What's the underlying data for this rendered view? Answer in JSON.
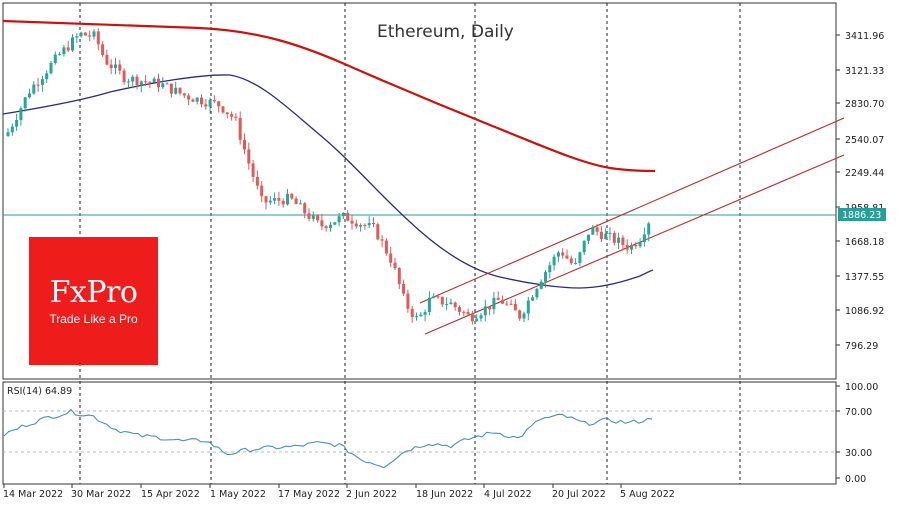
{
  "chart_data": {
    "type": "candlestick",
    "title": "Ethereum, Daily",
    "instrument": "Ethereum",
    "timeframe": "Daily",
    "price_axis": {
      "ticks": [
        3411.96,
        3121.33,
        2830.7,
        2540.07,
        2249.44,
        1958.81,
        1668.18,
        1377.55,
        1086.92,
        796.29
      ],
      "current_price": 1886.23,
      "current_price_color": "#2a9d9a"
    },
    "x_axis": {
      "ticks": [
        "14 Mar 2022",
        "30 Mar 2022",
        "15 Apr 2022",
        "1 May 2022",
        "17 May 2022",
        "2 Jun 2022",
        "18 Jun 2022",
        "4 Jul 2022",
        "20 Jul 2022",
        "5 Aug 2022"
      ]
    },
    "grid": {
      "vertical_dashed": true,
      "horizontal": false
    },
    "colors": {
      "bull": "#26a69a",
      "bear": "#e05a57",
      "ma200": "#cc1111",
      "ma50": "#2a2a80",
      "channel": "#b03030",
      "rsi": "#4a8fc0"
    },
    "overlays": [
      {
        "name": "Moving average (long, red)",
        "approx_values": [
          3480,
          3470,
          3450,
          3400,
          3300,
          3150,
          2980,
          2800,
          2600,
          2400,
          2270,
          2260
        ]
      },
      {
        "name": "Moving average (short, navy)",
        "approx_values": [
          2880,
          2950,
          3000,
          3080,
          3100,
          2820,
          2350,
          1950,
          1600,
          1380,
          1300,
          1420
        ]
      },
      {
        "name": "Ascending channel upper",
        "from": [
          1122,
          "19 Jun 2022"
        ],
        "to": [
          2680,
          "right edge"
        ]
      },
      {
        "name": "Ascending channel lower",
        "from": [
          880,
          "19 Jun 2022"
        ],
        "to": [
          2380,
          "right edge"
        ]
      }
    ],
    "series": [
      {
        "name": "ETH close (approx)",
        "x": [
          "14 Mar 2022",
          "30 Mar 2022",
          "15 Apr 2022",
          "1 May 2022",
          "17 May 2022",
          "2 Jun 2022",
          "18 Jun 2022",
          "4 Jul 2022",
          "20 Jul 2022",
          "5 Aug 2022",
          "12 Aug 2022"
        ],
        "values": [
          2580,
          3380,
          3040,
          2800,
          2030,
          1840,
          1000,
          1150,
          1540,
          1700,
          1886.23
        ]
      }
    ],
    "indicator": {
      "name": "RSI(14)",
      "label": "RSI(14) 64.89",
      "value": 64.89,
      "ticks": [
        "100.00",
        "70.00",
        "30.00",
        "0.00"
      ],
      "levels": [
        70,
        30
      ],
      "approx_values": [
        47,
        58,
        66,
        72,
        67,
        53,
        46,
        44,
        40,
        41,
        26,
        31,
        33,
        34,
        38,
        36,
        20,
        13,
        30,
        38,
        35,
        44,
        50,
        43,
        64,
        68,
        59,
        63,
        60,
        64
      ]
    }
  },
  "chart": {
    "title": "Ethereum, Daily",
    "price_ticks": [
      "3411.96",
      "3121.33",
      "2830.70",
      "2540.07",
      "2249.44",
      "1958.81",
      "1668.18",
      "1377.55",
      "1086.92",
      "796.29"
    ],
    "current_price_label": "1886.23",
    "rsi_label": "RSI(14) 64.89",
    "rsi_ticks": [
      "100.00",
      "70.00",
      "30.00",
      "0.00"
    ],
    "date_ticks": [
      "14 Mar 2022",
      "30 Mar 2022",
      "15 Apr 2022",
      "1 May 2022",
      "17 May 2022",
      "2 Jun 2022",
      "18 Jun 2022",
      "4 Jul 2022",
      "20 Jul 2022",
      "5 Aug 2022"
    ]
  },
  "logo": {
    "brand": "FxPro",
    "tagline": "Trade Like a Pro",
    "color": "#ef1c1c"
  }
}
